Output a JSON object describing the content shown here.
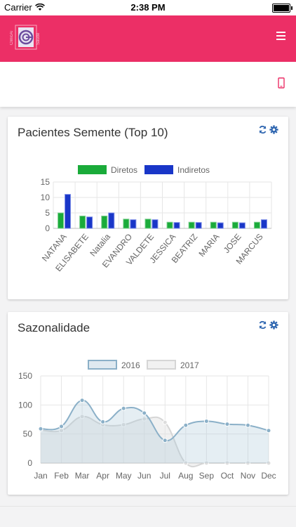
{
  "status": {
    "carrier": "Carrier",
    "time": "2:38 PM"
  },
  "header": {
    "logo_icon": "clinic-logo-icon",
    "menu_icon": "hamburger-menu-icon",
    "accent": "#ec2f66"
  },
  "toolbar": {
    "device_icon": "mobile-device-icon"
  },
  "cards": [
    {
      "title": "Pacientes Semente (Top 10)",
      "refresh_icon": "refresh-icon",
      "settings_icon": "gear-icon"
    },
    {
      "title": "Sazonalidade",
      "refresh_icon": "refresh-icon",
      "settings_icon": "gear-icon"
    }
  ],
  "chart_data": [
    {
      "type": "bar",
      "title": "Pacientes Semente (Top 10)",
      "categories": [
        "NATANA",
        "ELISABETE",
        "Natalia",
        "EVANDRO",
        "VALDETE",
        "JESSICA",
        "BEATRIZ",
        "MARIA",
        "JOSE",
        "MARCUS"
      ],
      "series": [
        {
          "name": "Diretos",
          "values": [
            5,
            4,
            4,
            3,
            3,
            2,
            2,
            2,
            2,
            2
          ],
          "color": "#1aab3a"
        },
        {
          "name": "Indiretos",
          "values": [
            11,
            3.7,
            5,
            2.8,
            2.8,
            1.9,
            1.9,
            1.8,
            1.8,
            2.8
          ],
          "color": "#1936c8"
        }
      ],
      "y_ticks": [
        "0",
        "5",
        "10",
        "15"
      ],
      "ylim": [
        0,
        15
      ],
      "legend": "top-center",
      "grid": true
    },
    {
      "type": "area",
      "title": "Sazonalidade",
      "categories": [
        "Jan",
        "Feb",
        "Mar",
        "Apr",
        "May",
        "Jun",
        "Jul",
        "Aug",
        "Sep",
        "Oct",
        "Nov",
        "Dec"
      ],
      "series": [
        {
          "name": "2016",
          "values": [
            59,
            63,
            108,
            71,
            94,
            86,
            39,
            65,
            72,
            67,
            65,
            56
          ],
          "color": "#8bb0c8"
        },
        {
          "name": "2017",
          "values": [
            57,
            56,
            80,
            66,
            66,
            76,
            70,
            0,
            0,
            0,
            0,
            0
          ],
          "color": "#d6d6d6"
        }
      ],
      "y_ticks": [
        "0",
        "50",
        "100",
        "150"
      ],
      "ylim": [
        0,
        150
      ],
      "legend": "top-center",
      "grid": true
    }
  ]
}
